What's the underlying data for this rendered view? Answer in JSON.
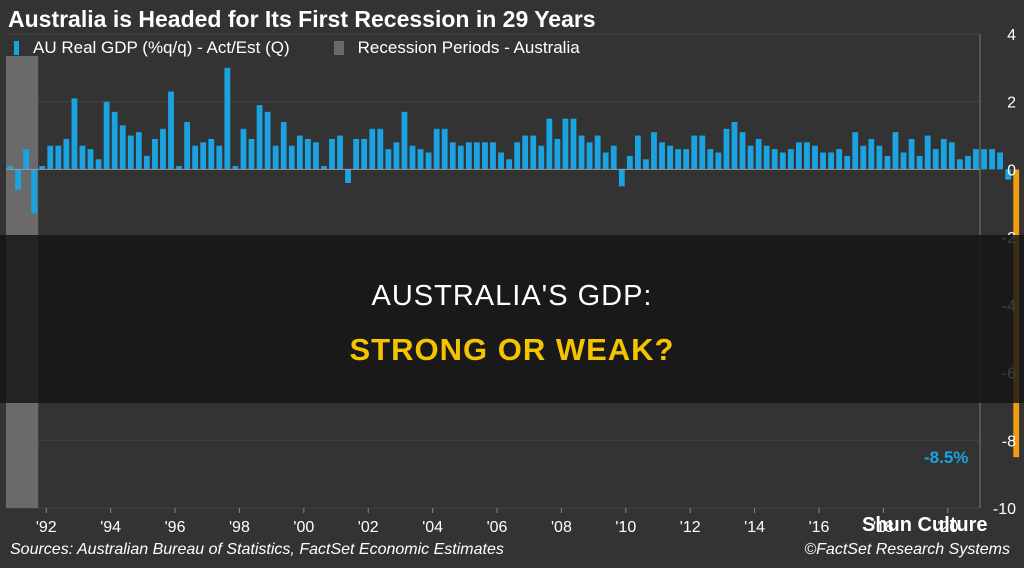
{
  "chart_data": {
    "type": "bar",
    "title": "Australia is Headed for Its First Recession in 29 Years",
    "legend": [
      "AU Real GDP (%q/q) - Act/Est (Q)",
      "Recession Periods - Australia"
    ],
    "ylim": [
      -10,
      4
    ],
    "yticks": [
      "4",
      "2",
      "0",
      "-2",
      "-4",
      "-6",
      "-8",
      "-10"
    ],
    "xticks": [
      "'92",
      "'94",
      "'96",
      "'98",
      "'00",
      "'02",
      "'04",
      "'06",
      "'08",
      "'10",
      "'12",
      "'14",
      "'16",
      "'18",
      "'20"
    ],
    "x_start_year": 1990.75,
    "x_end_year": 2021,
    "recession_period": [
      1990.75,
      1991.75
    ],
    "series": [
      {
        "name": "AU Real GDP (%q/q) - Act/Est (Q)",
        "start": "1990 Q4",
        "values": [
          0.1,
          -0.6,
          0.6,
          -1.3,
          0.1,
          0.7,
          0.7,
          0.9,
          2.1,
          0.7,
          0.6,
          0.3,
          2.0,
          1.7,
          1.3,
          1.0,
          1.1,
          0.4,
          0.9,
          1.2,
          2.3,
          0.1,
          1.4,
          0.7,
          0.8,
          0.9,
          0.7,
          3.0,
          0.1,
          1.2,
          0.9,
          1.9,
          1.7,
          0.7,
          1.4,
          0.7,
          1.0,
          0.9,
          0.8,
          0.1,
          0.9,
          1.0,
          -0.4,
          0.9,
          0.9,
          1.2,
          1.2,
          0.6,
          0.8,
          1.7,
          0.7,
          0.6,
          0.5,
          1.2,
          1.2,
          0.8,
          0.7,
          0.8,
          0.8,
          0.8,
          0.8,
          0.5,
          0.3,
          0.8,
          1.0,
          1.0,
          0.7,
          1.5,
          0.9,
          1.5,
          1.5,
          1.0,
          0.8,
          1.0,
          0.5,
          0.7,
          -0.5,
          0.4,
          1.0,
          0.3,
          1.1,
          0.8,
          0.7,
          0.6,
          0.6,
          1.0,
          1.0,
          0.6,
          0.5,
          1.2,
          1.4,
          1.1,
          0.7,
          0.9,
          0.7,
          0.6,
          0.5,
          0.6,
          0.8,
          0.8,
          0.7,
          0.5,
          0.5,
          0.6,
          0.4,
          1.1,
          0.7,
          0.9,
          0.7,
          0.4,
          1.1,
          0.5,
          0.9,
          0.4,
          1.0,
          0.6,
          0.9,
          0.8,
          0.3,
          0.4,
          0.6,
          0.6,
          0.6,
          0.5,
          -0.3,
          -8.5
        ]
      }
    ],
    "highlight": {
      "index": 125,
      "color": "#f39c12"
    },
    "annotation": "-8.5%"
  },
  "banner": {
    "line1": "AUSTRALIA'S GDP:",
    "line2": "STRONG OR WEAK?"
  },
  "source": "Sources: Australian Bureau of Statistics, FactSet Economic Estimates",
  "copyright": "©FactSet Research Systems",
  "watermark": "Shun Culture",
  "colors": {
    "bar": "#1aa3e0",
    "highlight": "#f39c12",
    "recession": "#6a6a6a",
    "background": "#333333",
    "banner_text": "#f5c400"
  }
}
